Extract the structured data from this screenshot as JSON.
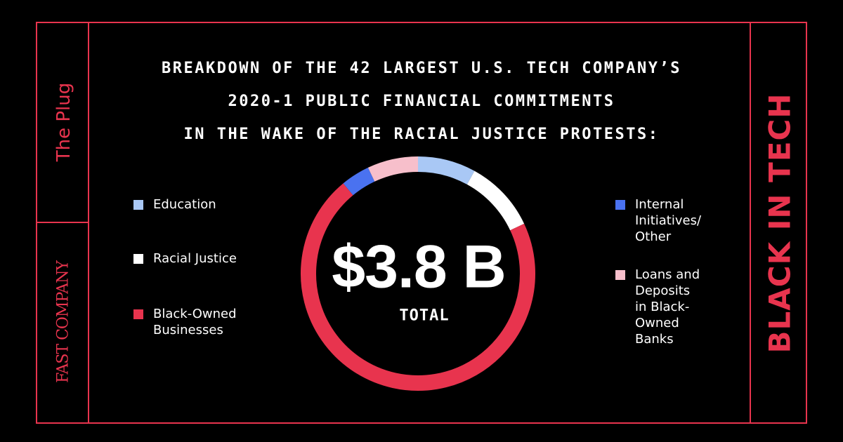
{
  "header": {
    "title_lines": [
      "BREAKDOWN OF THE 42 LARGEST U.S. TECH COMPANY’S",
      "2020-1 PUBLIC FINANCIAL COMMITMENTS",
      "IN THE WAKE OF THE RACIAL JUSTICE PROTESTS:"
    ]
  },
  "sidebar": {
    "plug_label": "The Plug",
    "logo_text": "FAST COMPANY",
    "series_label": "BLACK IN TECH"
  },
  "colors": {
    "accent": "#e8344e",
    "background": "#000000",
    "text": "#ffffff"
  },
  "chart_data": {
    "type": "pie",
    "style": "donut",
    "center_value": "$3.8 B",
    "center_label": "TOTAL",
    "categories": [
      "Education",
      "Racial Justice",
      "Black-Owned Businesses",
      "Internal Initiatives/ Other",
      "Loans and Deposits in Black-Owned Banks"
    ],
    "values": [
      8,
      10,
      71,
      4,
      7
    ],
    "unit": "percent of total (estimated)",
    "colors": [
      "#a9c8f5",
      "#ffffff",
      "#e8344e",
      "#4a72f0",
      "#f7bfcb"
    ],
    "legend": {
      "left": [
        {
          "label": "Education",
          "color": "#a9c8f5"
        },
        {
          "label": "Racial Justice",
          "color": "#ffffff"
        },
        {
          "label": "Black-Owned\nBusinesses",
          "color": "#e8344e"
        }
      ],
      "right": [
        {
          "label": "Internal\nInitiatives/\nOther",
          "color": "#4a72f0"
        },
        {
          "label": "Loans and\nDeposits\nin Black-\nOwned\nBanks",
          "color": "#f7bfcb"
        }
      ]
    }
  }
}
